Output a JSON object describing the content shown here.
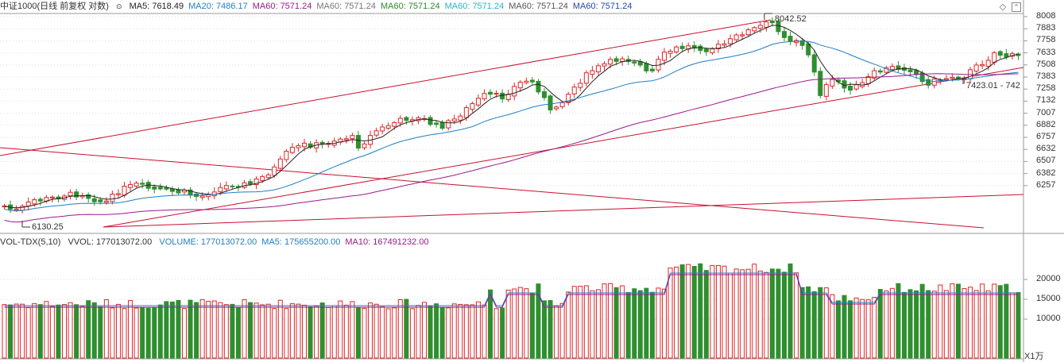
{
  "header": {
    "symbol_title": "中证1000(日线 前复权 对数)",
    "ma_items": [
      {
        "label": "MA5: 7618.49",
        "color": "#222222"
      },
      {
        "label": "MA20: 7486.17",
        "color": "#1e7fc8"
      },
      {
        "label": "MA60: 7571.24",
        "color": "#9b1a8c"
      },
      {
        "label": "MA60: 7571.24",
        "color": "#777777"
      },
      {
        "label": "MA60: 7571.24",
        "color": "#2b8a2b"
      },
      {
        "label": "MA60: 7571.24",
        "color": "#28b5c8"
      },
      {
        "label": "MA60: 7571.24",
        "color": "#555555"
      },
      {
        "label": "MA60: 7571.24",
        "color": "#1f4aa8"
      }
    ]
  },
  "volume_header": {
    "name": "VOL-TDX(5,10)",
    "vvol": "VVOL: 177013072.00",
    "items": [
      {
        "label": "VOLUME: 177013072.00",
        "color": "#1e7fc8"
      },
      {
        "label": "MA5: 175655200.00",
        "color": "#1e7fc8"
      },
      {
        "label": "MA10: 167491232.00",
        "color": "#9b1a8c"
      }
    ]
  },
  "price_axis": [
    "8008",
    "7883",
    "7758",
    "7633",
    "7508",
    "7383",
    "7258",
    "7132",
    "7007",
    "6882",
    "6757",
    "6632",
    "6507",
    "6382",
    "6257"
  ],
  "volume_axis": [
    "20000",
    "15000",
    "10000"
  ],
  "volume_unit": "X1万",
  "annotations": {
    "high": "8042.52",
    "low": "6130.25",
    "right_mark": "7423.01 - 742"
  },
  "colors": {
    "up": "#e0262a",
    "down": "#2f8f2f",
    "ma5": "#222222",
    "ma20": "#1e7fc8",
    "ma60": "#9b1a8c",
    "trend": "#c8102e",
    "vol_ma5": "#1e7fc8",
    "vol_ma10": "#9b1a8c"
  }
}
